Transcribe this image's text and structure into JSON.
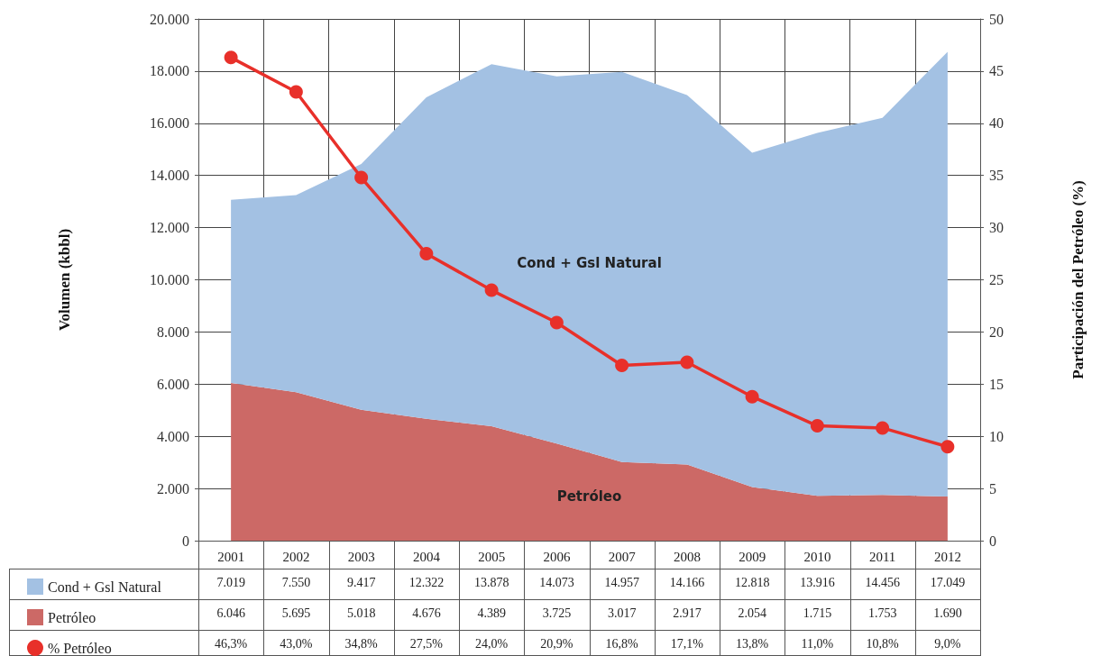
{
  "chart_data": {
    "type": "area",
    "stacked": true,
    "ylabel": "Volumen (kbbl)",
    "y2label": "Participación del Petróleo (%)",
    "categories": [
      "2001",
      "2002",
      "2003",
      "2004",
      "2005",
      "2006",
      "2007",
      "2008",
      "2009",
      "2010",
      "2011",
      "2012"
    ],
    "series": [
      {
        "name": "Petróleo",
        "color": "#cc6966",
        "values": [
          6046,
          5695,
          5018,
          4676,
          4389,
          3725,
          3017,
          2917,
          2054,
          1715,
          1753,
          1690
        ],
        "value_labels": [
          "6.046",
          "5.695",
          "5.018",
          "4.676",
          "4.389",
          "3.725",
          "3.017",
          "2.917",
          "2.054",
          "1.715",
          "1.753",
          "1.690"
        ]
      },
      {
        "name": "Cond + Gsl Natural",
        "color": "#a3c1e3",
        "values": [
          7019,
          7550,
          9417,
          12322,
          13878,
          14073,
          14957,
          14166,
          12818,
          13916,
          14456,
          17049
        ],
        "value_labels": [
          "7.019",
          "7.550",
          "9.417",
          "12.322",
          "13.878",
          "14.073",
          "14.957",
          "14.166",
          "12.818",
          "13.916",
          "14.456",
          "17.049"
        ]
      },
      {
        "name": "% Petróleo",
        "type": "line",
        "axis": "y2",
        "color": "#e8302a",
        "marker": "circle",
        "values": [
          46.3,
          43.0,
          34.8,
          27.5,
          24.0,
          20.9,
          16.8,
          17.1,
          13.8,
          11.0,
          10.8,
          9.0
        ],
        "value_labels": [
          "46,3%",
          "43,0%",
          "34,8%",
          "27,5%",
          "24,0%",
          "20,9%",
          "16,8%",
          "17,1%",
          "13,8%",
          "11,0%",
          "10,8%",
          "9,0%"
        ]
      }
    ],
    "ylim": [
      0,
      20000
    ],
    "yticks": [
      {
        "value": 0,
        "label": "0"
      },
      {
        "value": 2000,
        "label": "2.000"
      },
      {
        "value": 4000,
        "label": "4.000"
      },
      {
        "value": 6000,
        "label": "6.000"
      },
      {
        "value": 8000,
        "label": "8.000"
      },
      {
        "value": 10000,
        "label": "10.000"
      },
      {
        "value": 12000,
        "label": "12.000"
      },
      {
        "value": 14000,
        "label": "14.000"
      },
      {
        "value": 16000,
        "label": "16.000"
      },
      {
        "value": 18000,
        "label": "18.000"
      },
      {
        "value": 20000,
        "label": "20.000"
      }
    ],
    "y2lim": [
      0,
      50
    ],
    "y2ticks": [
      0,
      5,
      10,
      15,
      20,
      25,
      30,
      35,
      40,
      45,
      50
    ],
    "grid": true,
    "legend": "bottom left"
  }
}
